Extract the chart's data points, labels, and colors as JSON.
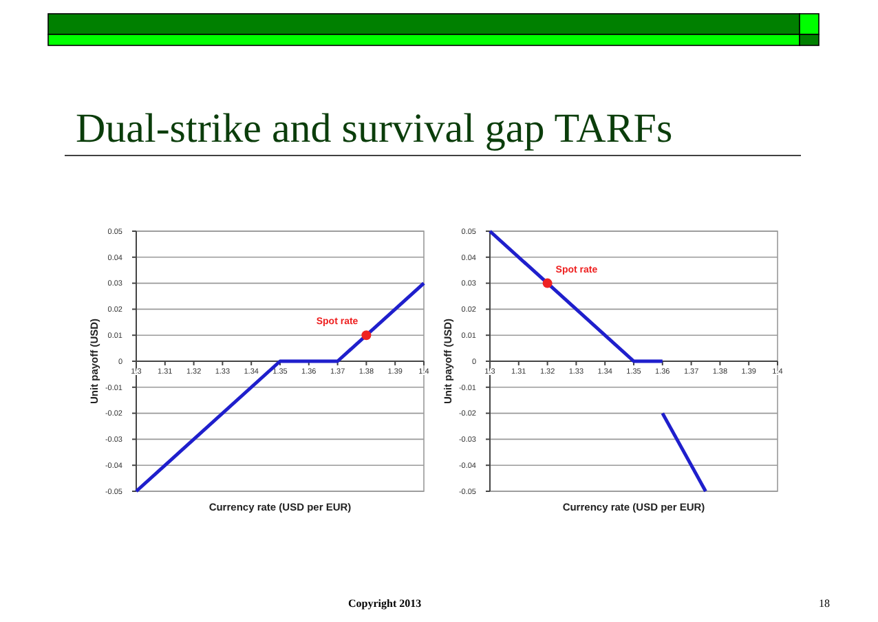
{
  "chart_data": [
    {
      "type": "line",
      "title": "Dual-strike and survival gap TARFs",
      "xlabel": "Currency rate (USD per EUR)",
      "ylabel": "Unit payoff (USD)",
      "xlim": [
        1.3,
        1.4
      ],
      "xticks": [
        1.3,
        1.31,
        1.32,
        1.33,
        1.34,
        1.35,
        1.36,
        1.37,
        1.38,
        1.39,
        1.4
      ],
      "ylim": [
        -0.05,
        0.05
      ],
      "yticks": [
        -0.05,
        -0.04,
        -0.03,
        -0.02,
        -0.01,
        0,
        0.01,
        0.02,
        0.03,
        0.04,
        0.05
      ],
      "grid": "y",
      "annotations": [
        "Copyright 2013"
      ],
      "series": [
        {
          "color": "#1f1fcc",
          "x": [
            1.3,
            1.35,
            1.37,
            1.4
          ],
          "values": [
            -0.05,
            0,
            0,
            0.03
          ],
          "marker": "none"
        },
        {
          "type": "scatter",
          "name": "Spot rate",
          "color": "#ee2222",
          "x": [
            1.38
          ],
          "values": [
            0.01
          ],
          "marker": "circle"
        }
      ]
    },
    {
      "type": "line",
      "xlabel": "Currency rate (USD per EUR)",
      "ylabel": "Unit payoff (USD)",
      "xlim": [
        1.3,
        1.4
      ],
      "xticks": [
        1.3,
        1.31,
        1.32,
        1.33,
        1.34,
        1.35,
        1.36,
        1.37,
        1.38,
        1.39,
        1.4
      ],
      "ylim": [
        -0.05,
        0.05
      ],
      "yticks": [
        -0.05,
        -0.04,
        -0.03,
        -0.02,
        -0.01,
        0,
        0.01,
        0.02,
        0.03,
        0.04,
        0.05
      ],
      "grid": "y",
      "annotations": [
        "18"
      ],
      "series": [
        {
          "color": "#1f1fcc",
          "x": [
            1.3,
            1.35,
            1.36
          ],
          "values": [
            0.05,
            0,
            0
          ],
          "marker": "none"
        },
        {
          "color": "#1f1fcc",
          "x": [
            1.36,
            1.375
          ],
          "values": [
            -0.02,
            -0.05
          ],
          "marker": "none"
        },
        {
          "type": "scatter",
          "name": "Spot rate",
          "color": "#ee2222",
          "x": [
            1.32
          ],
          "values": [
            0.03
          ],
          "marker": "circle"
        }
      ]
    }
  ]
}
